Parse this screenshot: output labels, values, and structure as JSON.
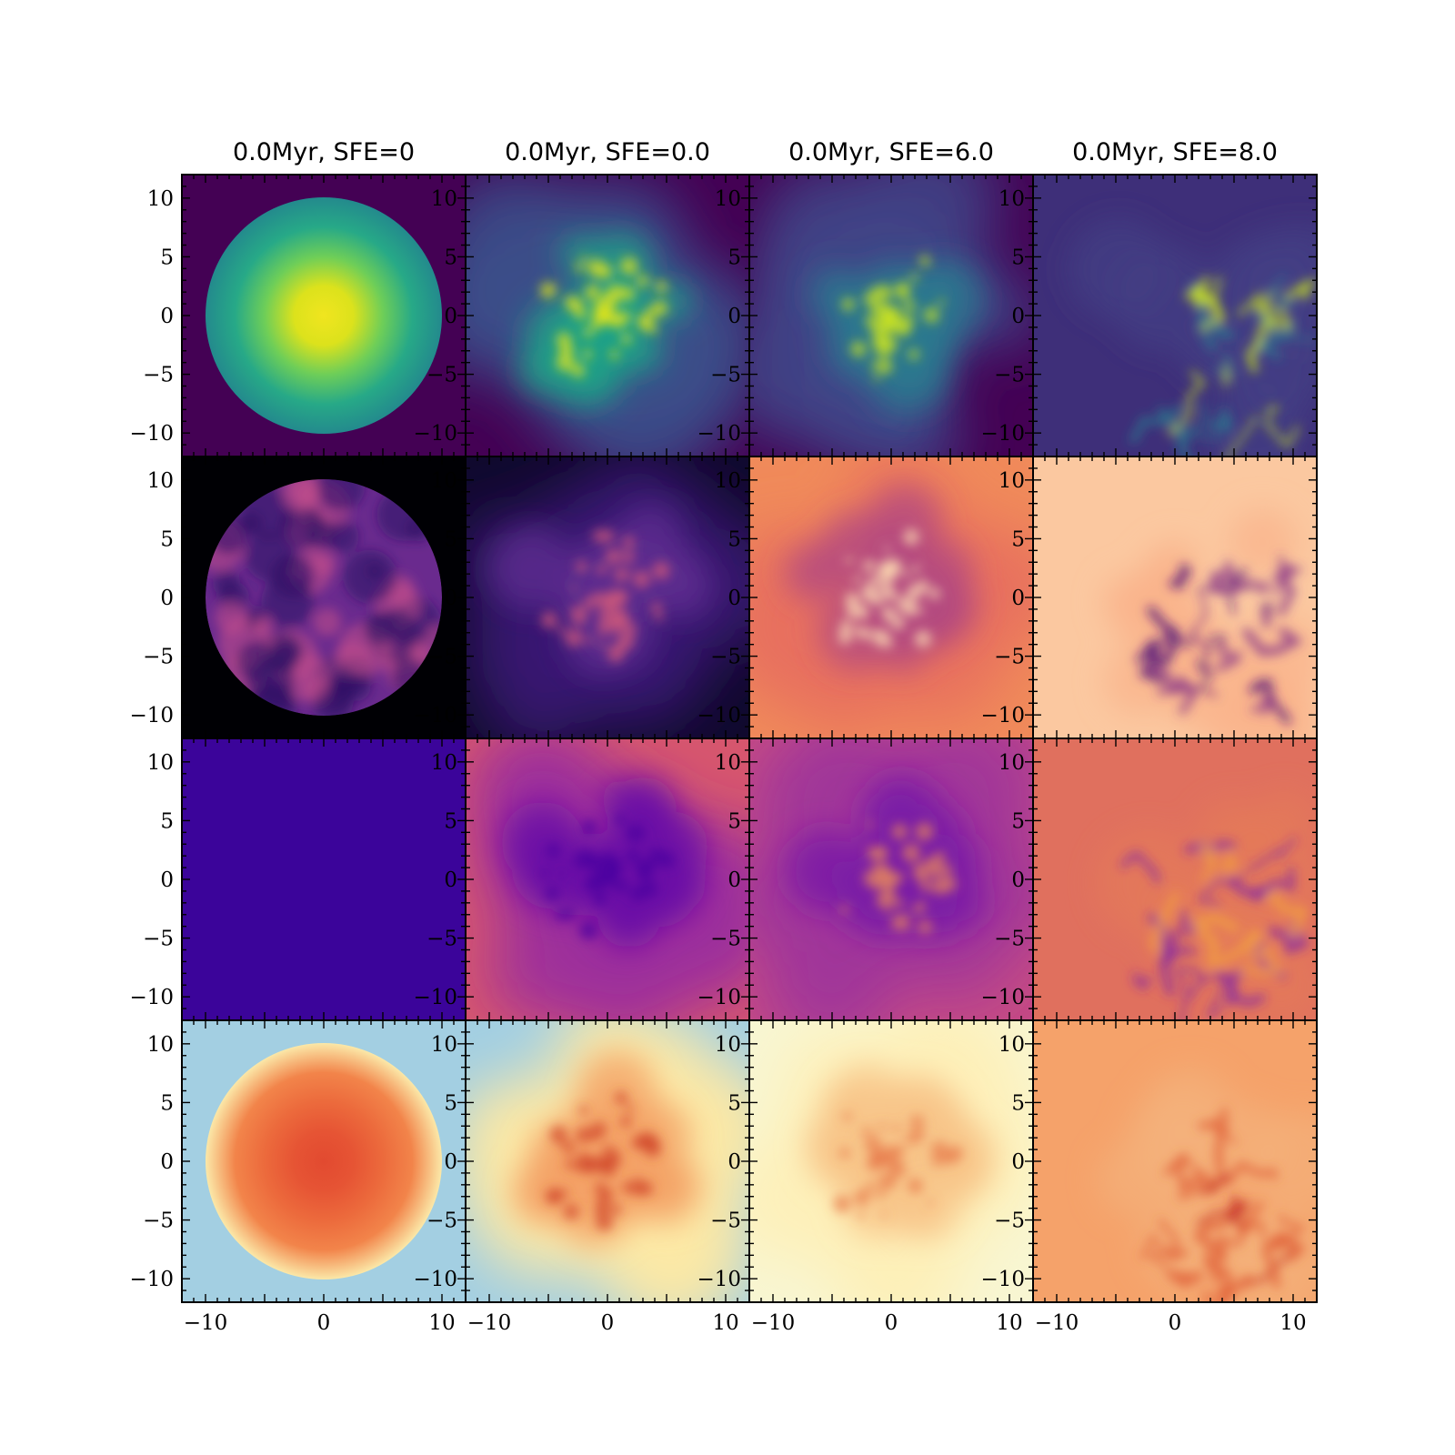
{
  "chart_data": {
    "type": "heatmap",
    "layout": "4x4 grid of projected map panels",
    "column_titles": [
      "0.0Myr, SFE=0",
      "0.0Myr, SFE=0.0",
      "0.0Myr, SFE=6.0",
      "0.0Myr, SFE=8.0"
    ],
    "xlim": [
      -12,
      12
    ],
    "ylim": [
      -12,
      12
    ],
    "x_ticks": [
      -10,
      0,
      10
    ],
    "y_ticks": [
      10,
      5,
      0,
      -5,
      -10
    ],
    "x_tick_labels": [
      "−10",
      "0",
      "10"
    ],
    "y_tick_labels": [
      "10",
      "5",
      "0",
      "−5",
      "−10"
    ],
    "colormaps_by_row": [
      "viridis",
      "magma",
      "plasma",
      "RdYlBu_r"
    ],
    "cloud_radius_initial": 10,
    "panels": [
      {
        "row": 0,
        "col": 0,
        "pattern": "sphere",
        "bg": "#440154",
        "stops": [
          "#f0e51f",
          "#dce21c",
          "#6ece58",
          "#27a987",
          "#238a8d"
        ]
      },
      {
        "row": 0,
        "col": 1,
        "pattern": "clumpy",
        "bg": "#440154",
        "halo": "#3b4d8a",
        "inner": "#1fa187",
        "bright": "#e2e418"
      },
      {
        "row": 0,
        "col": 2,
        "pattern": "clumpy",
        "bg": "#440154",
        "halo": "#414487",
        "inner": "#2a788e",
        "bright": "#c5e021"
      },
      {
        "row": 0,
        "col": 3,
        "pattern": "filaments",
        "bg": "#3e2f79",
        "halo": "#433e85",
        "inner": "#2a788e",
        "bright": "#c8e020"
      },
      {
        "row": 1,
        "col": 0,
        "pattern": "mottled-sphere",
        "bg": "#000004",
        "disk": "#6a2a8e",
        "spots": "#c44f8a",
        "dark": "#2b1164"
      },
      {
        "row": 1,
        "col": 1,
        "pattern": "clumpy",
        "bg": "#10092e",
        "halo": "#3a1a72",
        "inner": "#5d2a8e",
        "bright": "#d25a7a"
      },
      {
        "row": 1,
        "col": 2,
        "pattern": "clumpy",
        "bg": "#f08a5a",
        "halo": "#e8705e",
        "inner": "#b44a80",
        "bright": "#fcd8b0"
      },
      {
        "row": 1,
        "col": 3,
        "pattern": "filaments",
        "bg": "#fbc8a0",
        "halo": "#f9b28a",
        "inner": "#8c3a88",
        "bright": "#5a1a7a"
      },
      {
        "row": 2,
        "col": 0,
        "pattern": "uniform",
        "bg": "#3b049a"
      },
      {
        "row": 2,
        "col": 1,
        "pattern": "clumpy",
        "bg": "#d6566e",
        "halo": "#9c2e9c",
        "inner": "#6a0ea6",
        "bright": "#4a02a0"
      },
      {
        "row": 2,
        "col": 2,
        "pattern": "clumpy",
        "bg": "#c44a84",
        "halo": "#a0369a",
        "inner": "#7a1aa6",
        "bright": "#e08060"
      },
      {
        "row": 2,
        "col": 3,
        "pattern": "filaments",
        "bg": "#e0705e",
        "halo": "#e47a58",
        "inner": "#8a2aa0",
        "bright": "#f2a040"
      },
      {
        "row": 3,
        "col": 0,
        "pattern": "sphere",
        "bg": "#a3cfe2",
        "stops": [
          "#e24a30",
          "#e65434",
          "#ec6a3c",
          "#f2844a",
          "#fbe8a8"
        ]
      },
      {
        "row": 3,
        "col": 1,
        "pattern": "clumpy",
        "bg": "#a3cfe2",
        "halo": "#fde9a6",
        "inner": "#f4a266",
        "bright": "#d24a2e"
      },
      {
        "row": 3,
        "col": 2,
        "pattern": "clumpy",
        "bg": "#f8f6d2",
        "halo": "#fef0b8",
        "inner": "#f8c488",
        "bright": "#e88050"
      },
      {
        "row": 3,
        "col": 3,
        "pattern": "filaments",
        "bg": "#f5a26a",
        "halo": "#f3b07a",
        "inner": "#e06238",
        "bright": "#c42a22"
      }
    ]
  }
}
